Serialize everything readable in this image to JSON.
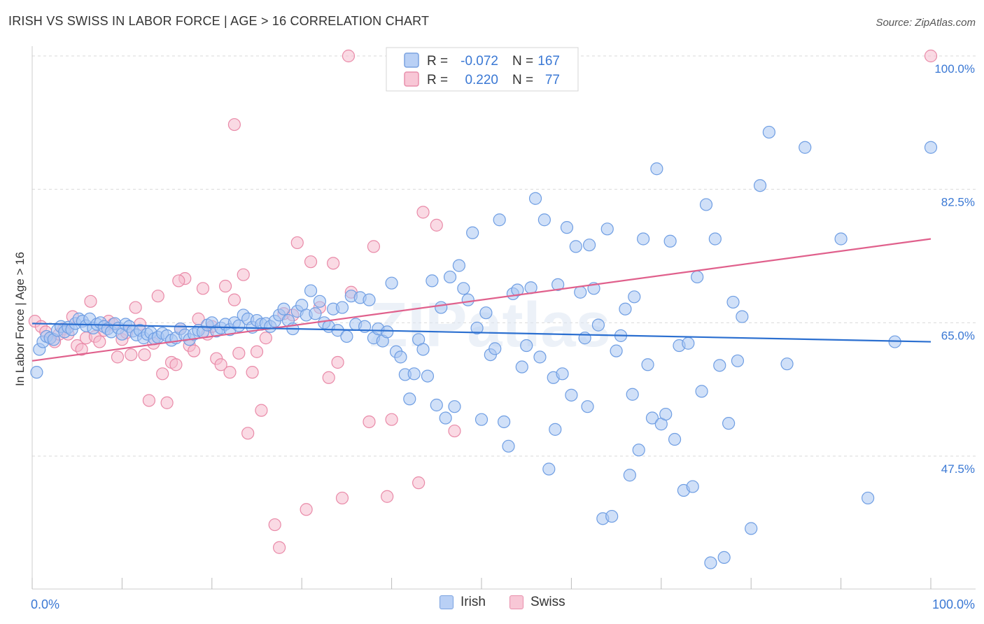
{
  "title": "IRISH VS SWISS IN LABOR FORCE | AGE > 16 CORRELATION CHART",
  "source": "Source: ZipAtlas.com",
  "watermark": "ZIPatlas",
  "colors": {
    "irish_fill": "#a9c6f2",
    "irish_stroke": "#6f9ee3",
    "irish_line": "#2b6fd0",
    "swiss_fill": "#f6bccd",
    "swiss_stroke": "#e98aa8",
    "swiss_line": "#e0608c",
    "axis_label": "#3a78d4",
    "grid": "#d9d9d9"
  },
  "legend_top": {
    "irish": {
      "r_label": "R =",
      "r_value": "-0.072",
      "n_label": "N =",
      "n_value": "167"
    },
    "swiss": {
      "r_label": "R =",
      "r_value": "0.220",
      "n_label": "N =",
      "n_value": "77"
    }
  },
  "legend_bottom": {
    "irish": "Irish",
    "swiss": "Swiss"
  },
  "chart_data": {
    "type": "scatter",
    "title": "IRISH VS SWISS IN LABOR FORCE | AGE > 16 CORRELATION CHART",
    "xlabel": "",
    "ylabel": "In Labor Force | Age > 16",
    "xlim": [
      0,
      100
    ],
    "ylim": [
      32,
      102
    ],
    "x_tick_labels": [
      "0.0%",
      "100.0%"
    ],
    "y_tick_values": [
      47.5,
      65.0,
      82.5,
      100.0
    ],
    "y_tick_labels": [
      "47.5%",
      "65.0%",
      "82.5%",
      "100.0%"
    ],
    "grid": "horizontal dashed",
    "legend_placement": "top-center",
    "series": [
      {
        "name": "Irish",
        "r": -0.072,
        "n": 167,
        "trend": {
          "x": [
            0,
            100
          ],
          "y": [
            64.9,
            62.5
          ]
        },
        "points": [
          [
            0.5,
            58.5
          ],
          [
            0.8,
            61.5
          ],
          [
            1.2,
            62.5
          ],
          [
            1.6,
            63.2
          ],
          [
            2.0,
            63.0
          ],
          [
            2.4,
            62.8
          ],
          [
            2.8,
            64.0
          ],
          [
            3.2,
            64.5
          ],
          [
            3.6,
            63.8
          ],
          [
            4.0,
            64.4
          ],
          [
            4.4,
            64.1
          ],
          [
            4.8,
            64.9
          ],
          [
            5.2,
            65.5
          ],
          [
            5.6,
            65.2
          ],
          [
            6.0,
            64.6
          ],
          [
            6.4,
            65.5
          ],
          [
            6.8,
            64.3
          ],
          [
            7.2,
            64.8
          ],
          [
            7.6,
            65.0
          ],
          [
            8.0,
            64.5
          ],
          [
            8.4,
            64.2
          ],
          [
            8.8,
            63.8
          ],
          [
            9.2,
            64.9
          ],
          [
            9.6,
            64.3
          ],
          [
            10.0,
            63.5
          ],
          [
            10.4,
            64.8
          ],
          [
            10.8,
            64.5
          ],
          [
            11.2,
            63.9
          ],
          [
            11.6,
            63.4
          ],
          [
            12.0,
            64.0
          ],
          [
            12.4,
            63.0
          ],
          [
            12.8,
            63.5
          ],
          [
            13.2,
            63.7
          ],
          [
            13.6,
            62.9
          ],
          [
            14.0,
            63.1
          ],
          [
            14.5,
            63.6
          ],
          [
            15.0,
            63.3
          ],
          [
            15.5,
            62.7
          ],
          [
            16.0,
            63.0
          ],
          [
            16.5,
            64.2
          ],
          [
            17.0,
            63.4
          ],
          [
            17.5,
            62.8
          ],
          [
            18.0,
            63.5
          ],
          [
            18.5,
            64.0
          ],
          [
            19.0,
            63.8
          ],
          [
            19.5,
            64.7
          ],
          [
            20.0,
            65.0
          ],
          [
            20.5,
            63.9
          ],
          [
            21.0,
            64.3
          ],
          [
            21.5,
            64.8
          ],
          [
            22.0,
            64.1
          ],
          [
            22.5,
            65.0
          ],
          [
            23.0,
            64.6
          ],
          [
            23.5,
            66.0
          ],
          [
            24.0,
            65.5
          ],
          [
            24.5,
            64.4
          ],
          [
            25.0,
            65.3
          ],
          [
            25.5,
            64.8
          ],
          [
            26.0,
            64.9
          ],
          [
            26.5,
            64.5
          ],
          [
            27.0,
            65.2
          ],
          [
            27.5,
            66.0
          ],
          [
            28.0,
            66.8
          ],
          [
            28.5,
            65.3
          ],
          [
            29.0,
            64.2
          ],
          [
            29.5,
            66.5
          ],
          [
            30.0,
            67.3
          ],
          [
            30.5,
            66.0
          ],
          [
            31.0,
            69.2
          ],
          [
            31.5,
            66.2
          ],
          [
            32.0,
            67.8
          ],
          [
            32.5,
            65.0
          ],
          [
            33.0,
            64.5
          ],
          [
            33.5,
            66.8
          ],
          [
            34.0,
            64.0
          ],
          [
            34.5,
            67.0
          ],
          [
            35.0,
            63.2
          ],
          [
            35.5,
            68.5
          ],
          [
            36.0,
            64.8
          ],
          [
            36.5,
            68.3
          ],
          [
            37.0,
            64.5
          ],
          [
            37.5,
            68.0
          ],
          [
            38.0,
            63.0
          ],
          [
            38.5,
            64.2
          ],
          [
            39.0,
            62.6
          ],
          [
            39.5,
            63.8
          ],
          [
            40.0,
            70.2
          ],
          [
            40.5,
            61.2
          ],
          [
            41.0,
            60.5
          ],
          [
            41.5,
            58.2
          ],
          [
            42.0,
            55.0
          ],
          [
            42.5,
            58.3
          ],
          [
            43.0,
            62.8
          ],
          [
            43.5,
            61.5
          ],
          [
            44.0,
            58.0
          ],
          [
            44.5,
            70.5
          ],
          [
            45.0,
            54.2
          ],
          [
            45.5,
            67.0
          ],
          [
            46.0,
            52.5
          ],
          [
            46.5,
            71.0
          ],
          [
            47.0,
            54.0
          ],
          [
            47.5,
            72.5
          ],
          [
            48.0,
            69.5
          ],
          [
            48.5,
            68.0
          ],
          [
            49.0,
            76.8
          ],
          [
            49.5,
            64.3
          ],
          [
            50.0,
            52.3
          ],
          [
            50.5,
            66.3
          ],
          [
            51.0,
            60.8
          ],
          [
            51.5,
            61.6
          ],
          [
            52.0,
            78.5
          ],
          [
            52.5,
            52.0
          ],
          [
            53.0,
            48.8
          ],
          [
            53.5,
            68.8
          ],
          [
            54.0,
            69.3
          ],
          [
            54.5,
            59.2
          ],
          [
            55.0,
            62.0
          ],
          [
            55.5,
            69.6
          ],
          [
            56.0,
            81.3
          ],
          [
            56.5,
            60.5
          ],
          [
            57.0,
            78.5
          ],
          [
            57.5,
            45.8
          ],
          [
            58.0,
            57.8
          ],
          [
            58.5,
            70.0
          ],
          [
            59.0,
            58.3
          ],
          [
            59.5,
            77.5
          ],
          [
            60.0,
            55.5
          ],
          [
            60.5,
            75.0
          ],
          [
            61.0,
            69.0
          ],
          [
            61.5,
            63.0
          ],
          [
            62.0,
            75.2
          ],
          [
            62.5,
            69.5
          ],
          [
            63.0,
            64.7
          ],
          [
            63.5,
            39.3
          ],
          [
            64.0,
            77.3
          ],
          [
            64.5,
            39.6
          ],
          [
            65.0,
            61.3
          ],
          [
            65.5,
            63.3
          ],
          [
            66.0,
            66.8
          ],
          [
            66.5,
            45.0
          ],
          [
            67.0,
            68.4
          ],
          [
            67.5,
            48.3
          ],
          [
            68.0,
            76.0
          ],
          [
            68.5,
            59.5
          ],
          [
            69.0,
            52.5
          ],
          [
            69.5,
            85.2
          ],
          [
            70.0,
            51.7
          ],
          [
            70.5,
            53.0
          ],
          [
            71.0,
            75.7
          ],
          [
            71.5,
            49.7
          ],
          [
            72.0,
            62.0
          ],
          [
            72.5,
            43.0
          ],
          [
            73.0,
            62.3
          ],
          [
            73.5,
            43.5
          ],
          [
            74.0,
            71.0
          ],
          [
            74.5,
            56.0
          ],
          [
            75.0,
            80.5
          ],
          [
            75.5,
            33.5
          ],
          [
            76.0,
            76.0
          ],
          [
            76.5,
            59.4
          ],
          [
            77.0,
            34.2
          ],
          [
            77.5,
            51.8
          ],
          [
            78.0,
            67.7
          ],
          [
            78.5,
            60.0
          ],
          [
            79.0,
            65.8
          ],
          [
            80.0,
            38.0
          ],
          [
            81.0,
            83.0
          ],
          [
            82.0,
            90.0
          ],
          [
            84.0,
            59.6
          ],
          [
            86.0,
            88.0
          ],
          [
            90.0,
            76.0
          ],
          [
            93.0,
            42.0
          ],
          [
            96.0,
            62.5
          ],
          [
            100.0,
            88.0
          ],
          [
            58.2,
            51.0
          ],
          [
            61.8,
            54.0
          ],
          [
            66.8,
            55.6
          ]
        ]
      },
      {
        "name": "Swiss",
        "r": 0.22,
        "n": 77,
        "trend": {
          "x": [
            0,
            100
          ],
          "y": [
            60.0,
            76.0
          ]
        },
        "points": [
          [
            0.3,
            65.2
          ],
          [
            1.0,
            64.5
          ],
          [
            1.5,
            63.8
          ],
          [
            2.0,
            63.0
          ],
          [
            2.5,
            62.5
          ],
          [
            3.0,
            63.5
          ],
          [
            3.5,
            64.2
          ],
          [
            4.0,
            63.5
          ],
          [
            4.5,
            65.8
          ],
          [
            5.0,
            62.0
          ],
          [
            5.5,
            61.5
          ],
          [
            6.0,
            63.0
          ],
          [
            6.5,
            67.8
          ],
          [
            7.0,
            63.2
          ],
          [
            7.5,
            62.5
          ],
          [
            8.0,
            64.0
          ],
          [
            8.5,
            65.2
          ],
          [
            9.0,
            64.8
          ],
          [
            9.5,
            60.5
          ],
          [
            10.0,
            62.8
          ],
          [
            10.5,
            63.7
          ],
          [
            11.0,
            60.8
          ],
          [
            11.5,
            67.0
          ],
          [
            12.0,
            64.8
          ],
          [
            12.5,
            60.8
          ],
          [
            13.0,
            54.8
          ],
          [
            13.5,
            62.3
          ],
          [
            14.0,
            68.5
          ],
          [
            14.5,
            58.3
          ],
          [
            15.0,
            54.5
          ],
          [
            15.5,
            59.8
          ],
          [
            16.0,
            59.5
          ],
          [
            16.5,
            64.2
          ],
          [
            17.0,
            70.8
          ],
          [
            17.5,
            62.0
          ],
          [
            18.0,
            61.3
          ],
          [
            18.5,
            65.5
          ],
          [
            19.0,
            69.5
          ],
          [
            19.5,
            63.5
          ],
          [
            20.0,
            64.5
          ],
          [
            20.5,
            60.3
          ],
          [
            21.0,
            59.5
          ],
          [
            21.5,
            69.8
          ],
          [
            22.0,
            58.5
          ],
          [
            22.5,
            68.0
          ],
          [
            23.0,
            61.0
          ],
          [
            23.5,
            71.3
          ],
          [
            24.0,
            50.5
          ],
          [
            24.5,
            58.5
          ],
          [
            25.0,
            61.2
          ],
          [
            25.5,
            53.5
          ],
          [
            26.0,
            63.0
          ],
          [
            27.0,
            38.5
          ],
          [
            27.5,
            35.5
          ],
          [
            28.0,
            66.2
          ],
          [
            29.0,
            66.0
          ],
          [
            29.5,
            75.5
          ],
          [
            30.5,
            40.5
          ],
          [
            31.0,
            73.0
          ],
          [
            32.0,
            67.0
          ],
          [
            33.0,
            57.8
          ],
          [
            33.5,
            72.8
          ],
          [
            34.0,
            59.8
          ],
          [
            34.5,
            42.0
          ],
          [
            35.5,
            69.0
          ],
          [
            37.5,
            52.0
          ],
          [
            38.0,
            75.0
          ],
          [
            39.5,
            42.2
          ],
          [
            40.0,
            52.3
          ],
          [
            43.0,
            44.0
          ],
          [
            43.5,
            79.5
          ],
          [
            45.0,
            77.8
          ],
          [
            47.0,
            50.8
          ],
          [
            35.2,
            100.0
          ],
          [
            22.5,
            91.0
          ],
          [
            100.0,
            100.0
          ],
          [
            16.3,
            70.5
          ]
        ]
      }
    ]
  }
}
